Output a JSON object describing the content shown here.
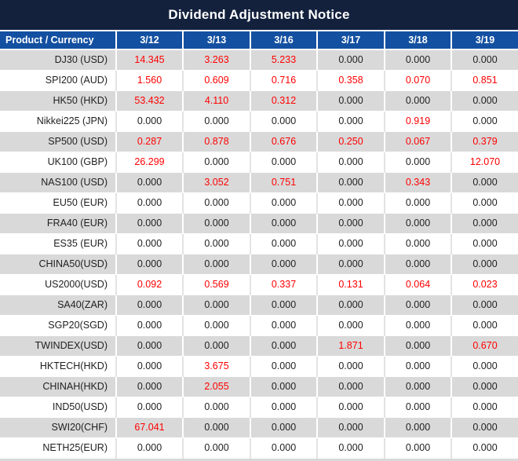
{
  "title": "Dividend Adjustment Notice",
  "colors": {
    "title_bg": "#13213D",
    "header_bg": "#1450A1",
    "row_alt_bg": "#D9D9D9",
    "value_highlight_red": "#FE0000",
    "value_default_black": "#1F1F1F"
  },
  "table": {
    "columns": [
      "Product / Currency",
      "3/12",
      "3/13",
      "3/16",
      "3/17",
      "3/18",
      "3/19"
    ],
    "zero_value": "0.000",
    "rows": [
      {
        "product": "DJ30 (USD)",
        "values": [
          "14.345",
          "3.263",
          "5.233",
          "0.000",
          "0.000",
          "0.000"
        ]
      },
      {
        "product": "SPI200 (AUD)",
        "values": [
          "1.560",
          "0.609",
          "0.716",
          "0.358",
          "0.070",
          "0.851"
        ]
      },
      {
        "product": "HK50 (HKD)",
        "values": [
          "53.432",
          "4.110",
          "0.312",
          "0.000",
          "0.000",
          "0.000"
        ]
      },
      {
        "product": "Nikkei225 (JPN)",
        "values": [
          "0.000",
          "0.000",
          "0.000",
          "0.000",
          "0.919",
          "0.000"
        ]
      },
      {
        "product": "SP500 (USD)",
        "values": [
          "0.287",
          "0.878",
          "0.676",
          "0.250",
          "0.067",
          "0.379"
        ]
      },
      {
        "product": "UK100 (GBP)",
        "values": [
          "26.299",
          "0.000",
          "0.000",
          "0.000",
          "0.000",
          "12.070"
        ]
      },
      {
        "product": "NAS100 (USD)",
        "values": [
          "0.000",
          "3.052",
          "0.751",
          "0.000",
          "0.343",
          "0.000"
        ]
      },
      {
        "product": "EU50 (EUR)",
        "values": [
          "0.000",
          "0.000",
          "0.000",
          "0.000",
          "0.000",
          "0.000"
        ]
      },
      {
        "product": "FRA40 (EUR)",
        "values": [
          "0.000",
          "0.000",
          "0.000",
          "0.000",
          "0.000",
          "0.000"
        ]
      },
      {
        "product": "ES35 (EUR)",
        "values": [
          "0.000",
          "0.000",
          "0.000",
          "0.000",
          "0.000",
          "0.000"
        ]
      },
      {
        "product": "CHINA50(USD)",
        "values": [
          "0.000",
          "0.000",
          "0.000",
          "0.000",
          "0.000",
          "0.000"
        ]
      },
      {
        "product": "US2000(USD)",
        "values": [
          "0.092",
          "0.569",
          "0.337",
          "0.131",
          "0.064",
          "0.023"
        ]
      },
      {
        "product": "SA40(ZAR)",
        "values": [
          "0.000",
          "0.000",
          "0.000",
          "0.000",
          "0.000",
          "0.000"
        ]
      },
      {
        "product": "SGP20(SGD)",
        "values": [
          "0.000",
          "0.000",
          "0.000",
          "0.000",
          "0.000",
          "0.000"
        ]
      },
      {
        "product": "TWINDEX(USD)",
        "values": [
          "0.000",
          "0.000",
          "0.000",
          "1.871",
          "0.000",
          "0.670"
        ]
      },
      {
        "product": "HKTECH(HKD)",
        "values": [
          "0.000",
          "3.675",
          "0.000",
          "0.000",
          "0.000",
          "0.000"
        ]
      },
      {
        "product": "CHINAH(HKD)",
        "values": [
          "0.000",
          "2.055",
          "0.000",
          "0.000",
          "0.000",
          "0.000"
        ]
      },
      {
        "product": "IND50(USD)",
        "values": [
          "0.000",
          "0.000",
          "0.000",
          "0.000",
          "0.000",
          "0.000"
        ]
      },
      {
        "product": "SWI20(CHF)",
        "values": [
          "67.041",
          "0.000",
          "0.000",
          "0.000",
          "0.000",
          "0.000"
        ]
      },
      {
        "product": "NETH25(EUR)",
        "values": [
          "0.000",
          "0.000",
          "0.000",
          "0.000",
          "0.000",
          "0.000"
        ]
      }
    ]
  }
}
